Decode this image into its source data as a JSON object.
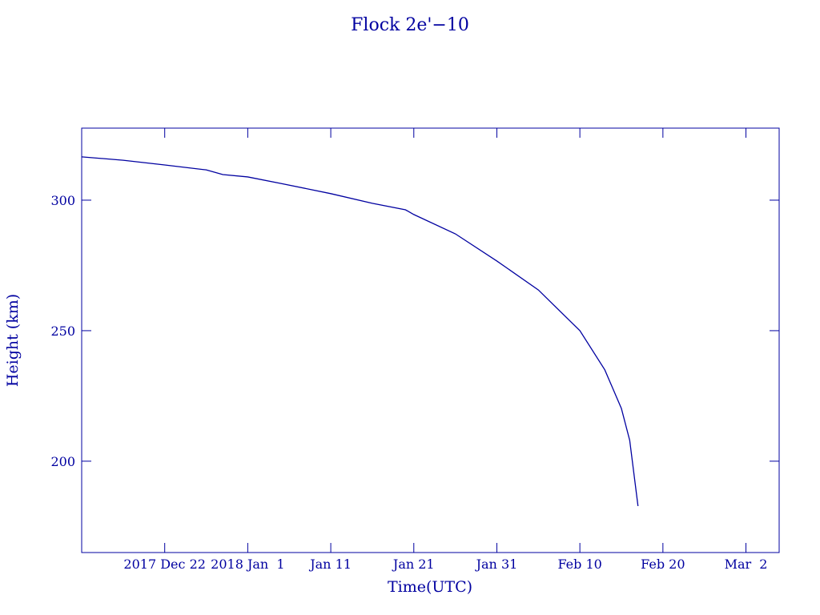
{
  "chart_data": {
    "type": "line",
    "title": "Flock 2e'−10",
    "x_label": "Time(UTC)",
    "y_label": "Height (km)",
    "x": [
      "2017-12-12",
      "2017-12-17",
      "2017-12-22",
      "2017-12-27",
      "2017-12-29",
      "2018-01-01",
      "2018-01-05",
      "2018-01-11",
      "2018-01-16",
      "2018-01-20",
      "2018-01-21",
      "2018-01-26",
      "2018-01-31",
      "2018-02-05",
      "2018-02-10",
      "2018-02-13",
      "2018-02-15",
      "2018-02-16",
      "2018-02-17"
    ],
    "series": [
      {
        "color": "#0000a0",
        "values": [
          316.6,
          315.3,
          313.5,
          311.6,
          309.8,
          308.9,
          306.4,
          302.5,
          298.8,
          296.3,
          294.5,
          287.1,
          276.7,
          265.6,
          250,
          235,
          220.2,
          208,
          182.8
        ]
      }
    ],
    "xlim": [
      "2017-12-12",
      "2018-03-06"
    ],
    "xticks": [
      {
        "value": "2017-12-22",
        "label": "2017 Dec 22"
      },
      {
        "value": "2018-01-01",
        "label": "2018 Jan  1"
      },
      {
        "value": "2018-01-11",
        "label": "Jan 11"
      },
      {
        "value": "2018-01-21",
        "label": "Jan 21"
      },
      {
        "value": "2018-01-31",
        "label": "Jan 31"
      },
      {
        "value": "2018-02-10",
        "label": "Feb 10"
      },
      {
        "value": "2018-02-20",
        "label": "Feb 20"
      },
      {
        "value": "2018-03-02",
        "label": "Mar  2"
      }
    ],
    "ylim": [
      165,
      327.6
    ],
    "yticks": [
      200,
      250,
      300
    ],
    "grid": false
  }
}
